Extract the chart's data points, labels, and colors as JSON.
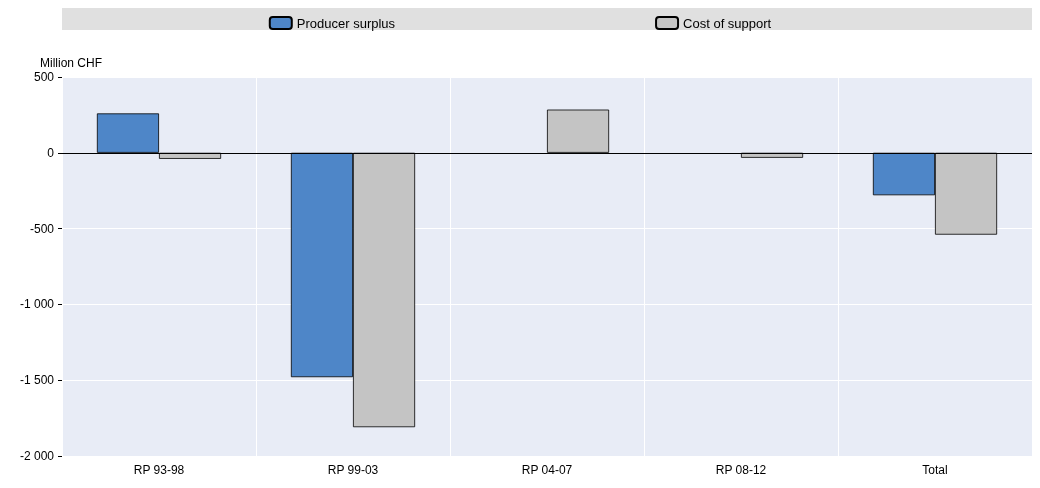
{
  "chart_data": {
    "type": "bar",
    "ylabel": "Million CHF",
    "categories": [
      "RP 93-98",
      "RP 99-03",
      "RP 04-07",
      "RP 08-12",
      "Total"
    ],
    "series": [
      {
        "name": "Producer surplus",
        "color": "#4e86c8",
        "values": [
          260,
          -1480,
          null,
          null,
          -280
        ]
      },
      {
        "name": "Cost of support",
        "color": "#c4c4c4",
        "values": [
          -40,
          -1810,
          285,
          -33,
          -540
        ]
      }
    ],
    "ylim": [
      -2000,
      500
    ],
    "yticks": [
      {
        "value": -2000,
        "label": "-2 000"
      },
      {
        "value": -1500,
        "label": "-1 500"
      },
      {
        "value": -1000,
        "label": "-1 000"
      },
      {
        "value": -500,
        "label": "-500"
      },
      0,
      500
    ],
    "grid": true,
    "legend": "top"
  }
}
